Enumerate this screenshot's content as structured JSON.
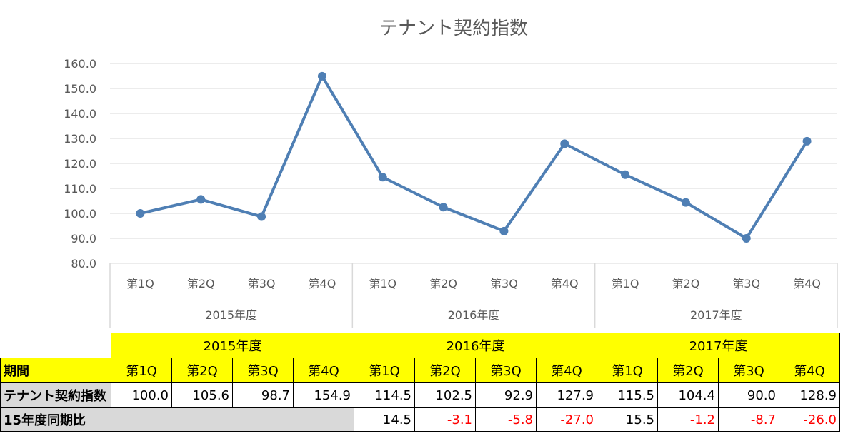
{
  "chart_data": {
    "type": "line",
    "title": "テナント契約指数",
    "ylim": [
      80,
      160
    ],
    "yticks": [
      "80.0",
      "90.0",
      "100.0",
      "110.0",
      "120.0",
      "130.0",
      "140.0",
      "150.0",
      "160.0"
    ],
    "categories": [
      "第1Q",
      "第2Q",
      "第3Q",
      "第4Q",
      "第1Q",
      "第2Q",
      "第3Q",
      "第4Q",
      "第1Q",
      "第2Q",
      "第3Q",
      "第4Q"
    ],
    "groups": [
      "2015年度",
      "2016年度",
      "2017年度"
    ],
    "series": [
      {
        "values": [
          100.0,
          105.6,
          98.7,
          154.9,
          114.5,
          102.5,
          92.9,
          127.9,
          115.5,
          104.4,
          90.0,
          128.9
        ]
      }
    ],
    "grid": true,
    "color": "#4f7fb4"
  },
  "table": {
    "years": [
      "2015年度",
      "2016年度",
      "2017年度"
    ],
    "row_period": {
      "label": "期間",
      "cells": [
        "第1Q",
        "第2Q",
        "第3Q",
        "第4Q",
        "第1Q",
        "第2Q",
        "第3Q",
        "第4Q",
        "第1Q",
        "第2Q",
        "第3Q",
        "第4Q"
      ]
    },
    "row_index": {
      "label": "テナント契約指数",
      "cells": [
        "100.0",
        "105.6",
        "98.7",
        "154.9",
        "114.5",
        "102.5",
        "92.9",
        "127.9",
        "115.5",
        "104.4",
        "90.0",
        "128.9"
      ]
    },
    "row_yoy": {
      "label": "15年度同期比",
      "cells": [
        "14.5",
        "-3.1",
        "-5.8",
        "-27.0",
        "15.5",
        "-1.2",
        "-8.7",
        "-26.0"
      ]
    }
  },
  "colors": {
    "header_fill": "#ffff00",
    "negative": "#ff0000",
    "grey_fill": "#d9d9d9"
  }
}
